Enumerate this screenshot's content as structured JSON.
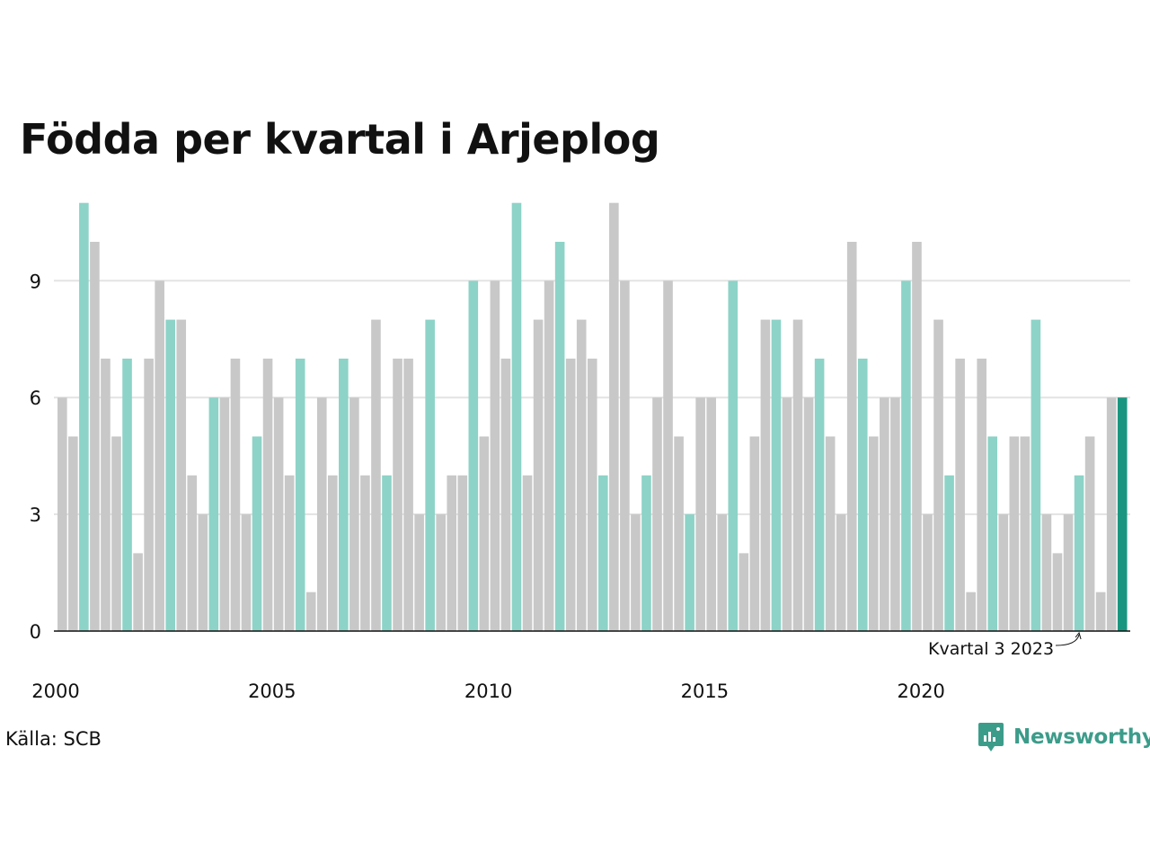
{
  "chart_data": {
    "type": "bar",
    "title": "Födda per kvartal i Arjeplog",
    "xlabel": "",
    "ylabel": "",
    "ylim": [
      0,
      11
    ],
    "y_ticks": [
      0,
      3,
      6,
      9
    ],
    "x_tick_labels": [
      "2000",
      "2005",
      "2010",
      "2015",
      "2020"
    ],
    "grid": true,
    "start_year": 2000,
    "colors": {
      "bar": "#c8c8c8",
      "highlight_quarter": "#8dd3c7",
      "latest": "#1a9680",
      "grid": "#e3e3e3",
      "axis": "#111111"
    },
    "highlight_quarter_number": 3,
    "values": [
      6,
      5,
      11,
      10,
      7,
      5,
      7,
      2,
      7,
      9,
      8,
      8,
      4,
      3,
      6,
      6,
      7,
      3,
      5,
      7,
      6,
      4,
      7,
      1,
      6,
      4,
      7,
      6,
      4,
      8,
      4,
      7,
      7,
      3,
      8,
      3,
      4,
      4,
      9,
      5,
      9,
      7,
      11,
      4,
      8,
      9,
      10,
      7,
      8,
      7,
      4,
      11,
      9,
      3,
      4,
      6,
      9,
      5,
      3,
      6,
      6,
      3,
      9,
      2,
      5,
      8,
      8,
      6,
      8,
      6,
      7,
      5,
      3,
      10,
      7,
      5,
      6,
      6,
      9,
      10,
      3,
      8,
      4,
      7,
      1,
      7,
      5,
      3,
      5,
      5,
      8,
      3,
      2,
      3,
      4,
      5,
      1,
      6,
      6
    ],
    "annotation": "Kvartal 3 2023"
  },
  "source": "Källa: SCB",
  "brand": {
    "name": "Newsworthy",
    "icon": "newsworthy-logo-icon"
  }
}
